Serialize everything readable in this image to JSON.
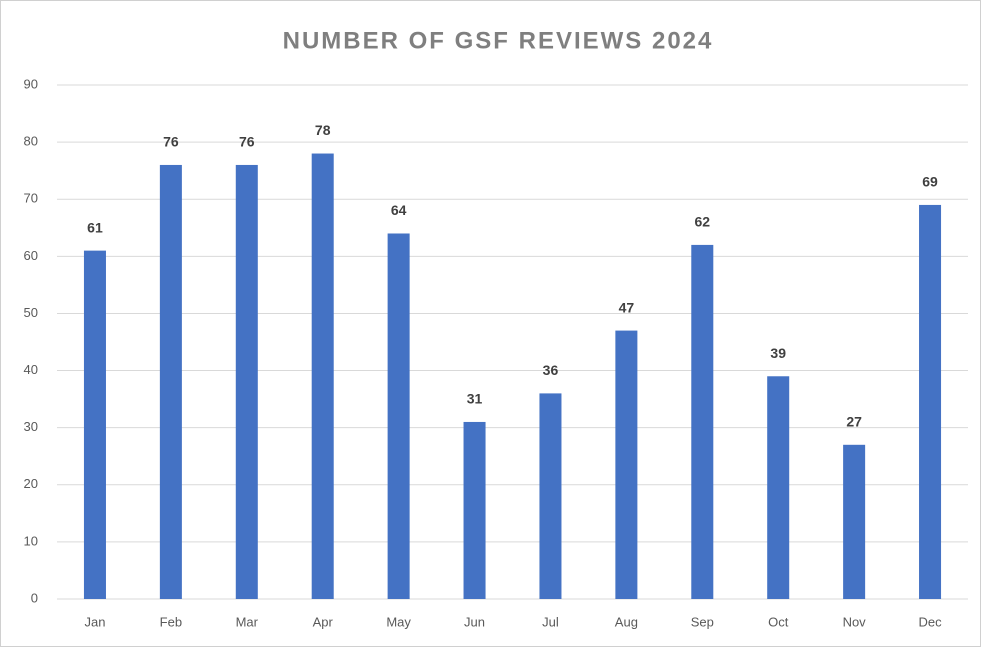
{
  "chart_data": {
    "type": "bar",
    "title": "NUMBER OF GSF REVIEWS 2024",
    "categories": [
      "Jan",
      "Feb",
      "Mar",
      "Apr",
      "May",
      "Jun",
      "Jul",
      "Aug",
      "Sep",
      "Oct",
      "Nov",
      "Dec"
    ],
    "values": [
      61,
      76,
      76,
      78,
      64,
      31,
      36,
      47,
      62,
      39,
      27,
      69
    ],
    "color": "#4472c4",
    "ylim": [
      0,
      90
    ],
    "yticks": [
      0,
      10,
      20,
      30,
      40,
      50,
      60,
      70,
      80,
      90
    ],
    "grid": true
  }
}
